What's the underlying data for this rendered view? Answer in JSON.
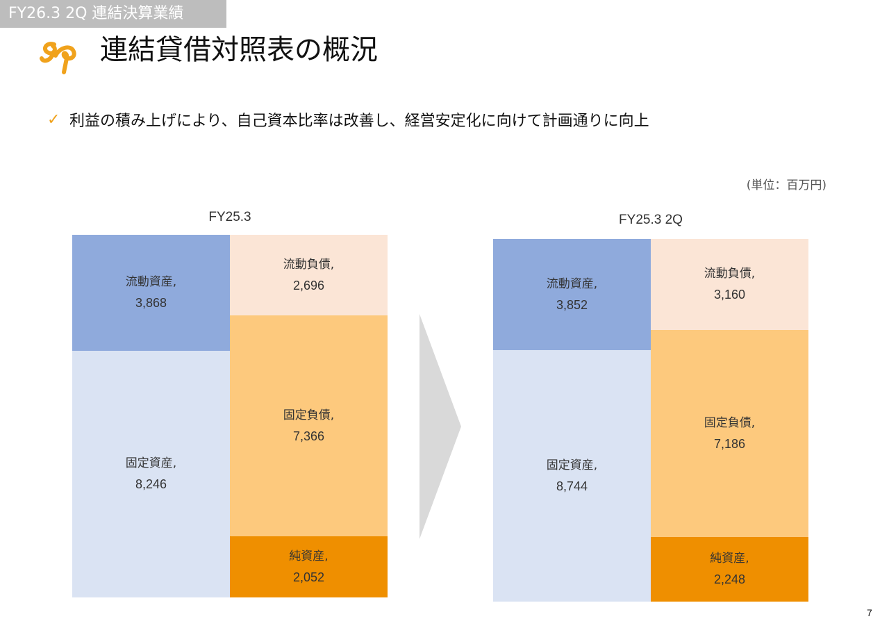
{
  "header": {
    "tag": "FY26.3 2Q 連結決算業績",
    "title": "連結貸借対照表の概況"
  },
  "bullet": {
    "icon": "check-icon",
    "text": "利益の積み上げにより、自己資本比率は改善し、経営安定化に向けて計画通りに向上"
  },
  "unit_label": "(単位：百万円)",
  "page_number": "7",
  "colors": {
    "current_assets": "#8faadc",
    "fixed_assets": "#dae3f3",
    "current_liabilities": "#fbe5d6",
    "fixed_liabilities": "#fdc97d",
    "net_assets": "#ef8f00",
    "accent": "#f0a21c"
  },
  "chart_data": [
    {
      "type": "bar",
      "title": "FY25.3",
      "assets": [
        {
          "label": "流動資産,",
          "value": 3868,
          "display": "3,868",
          "color_key": "current_assets"
        },
        {
          "label": "固定資産,",
          "value": 8246,
          "display": "8,246",
          "color_key": "fixed_assets"
        }
      ],
      "liabilities_and_equity": [
        {
          "label": "流動負債,",
          "value": 2696,
          "display": "2,696",
          "color_key": "current_liabilities"
        },
        {
          "label": "固定負債,",
          "value": 7366,
          "display": "7,366",
          "color_key": "fixed_liabilities"
        },
        {
          "label": "純資産,",
          "value": 2052,
          "display": "2,052",
          "color_key": "net_assets"
        }
      ]
    },
    {
      "type": "bar",
      "title": "FY25.3 2Q",
      "assets": [
        {
          "label": "流動資産,",
          "value": 3852,
          "display": "3,852",
          "color_key": "current_assets"
        },
        {
          "label": "固定資産,",
          "value": 8744,
          "display": "8,744",
          "color_key": "fixed_assets"
        }
      ],
      "liabilities_and_equity": [
        {
          "label": "流動負債,",
          "value": 3160,
          "display": "3,160",
          "color_key": "current_liabilities"
        },
        {
          "label": "固定負債,",
          "value": 7186,
          "display": "7,186",
          "color_key": "fixed_liabilities"
        },
        {
          "label": "純資産,",
          "value": 2248,
          "display": "2,248",
          "color_key": "net_assets"
        }
      ]
    }
  ]
}
